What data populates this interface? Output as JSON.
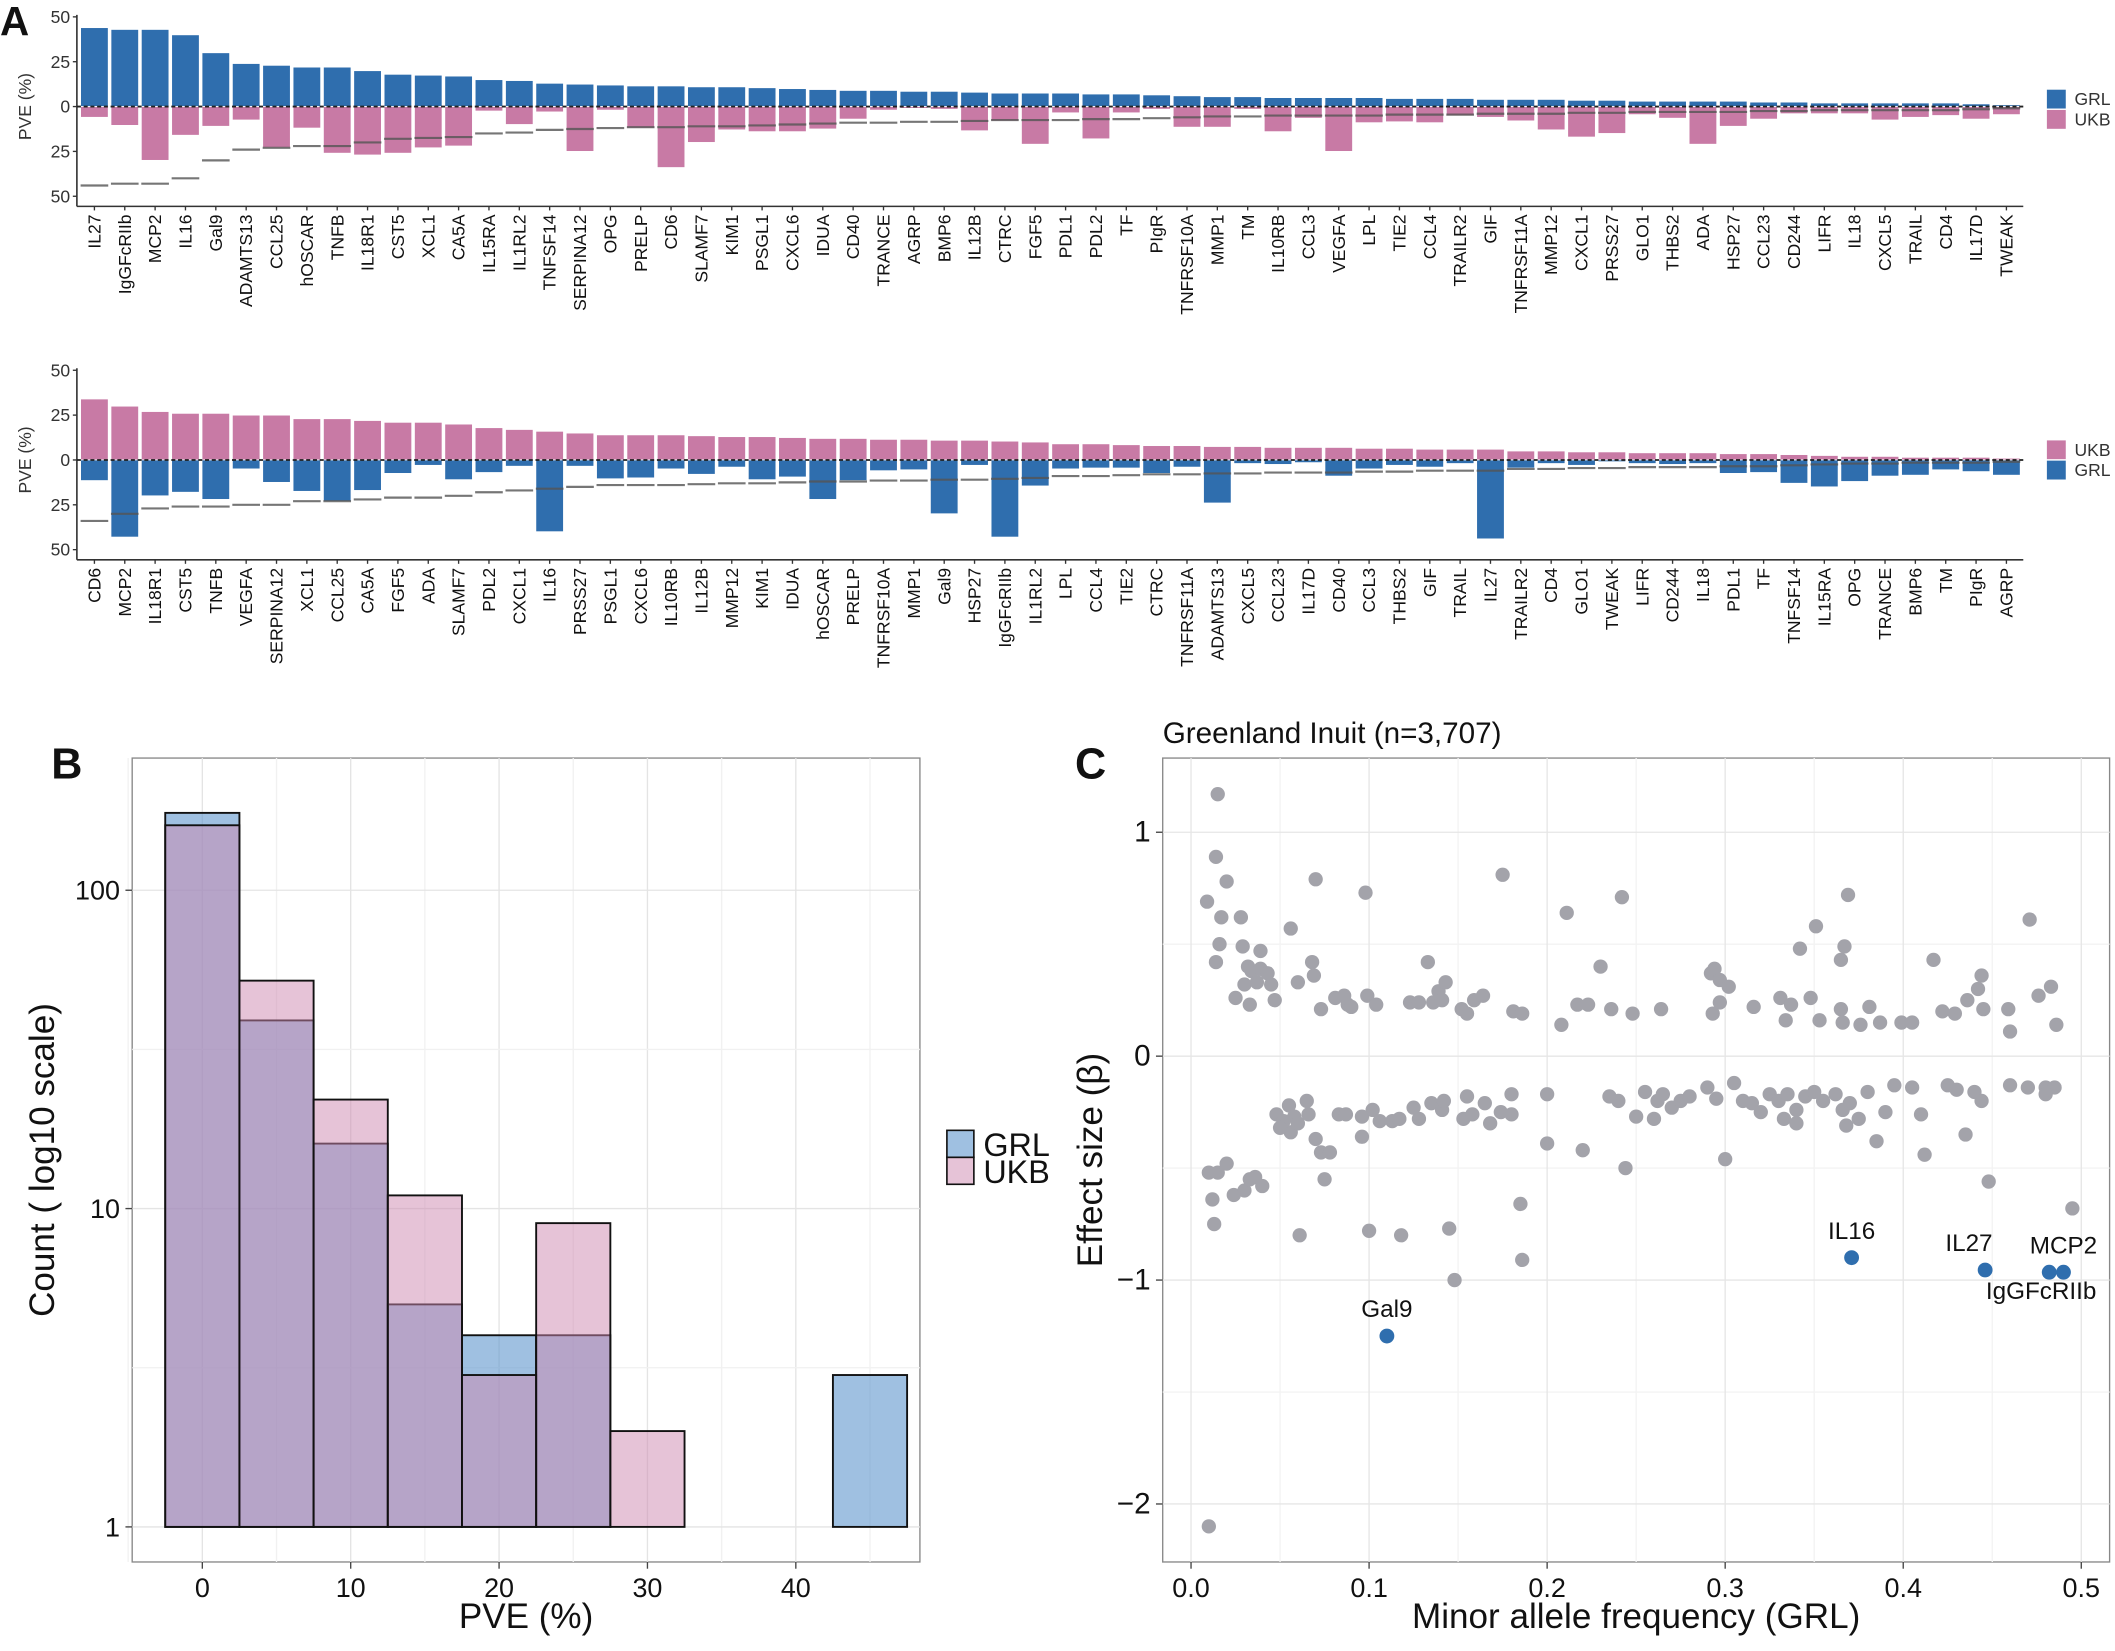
{
  "panel_labels": {
    "a": "A",
    "b": "B",
    "c": "C"
  },
  "colors": {
    "grl": "#2f6eae",
    "ukb": "#c87aa5",
    "gray_point": "#a3a3aa",
    "highlight": "#2f6eae"
  },
  "chart_data": [
    {
      "type": "bar",
      "panel": "A-top",
      "ylabel": "PVE (%)",
      "yticks": [
        "50",
        "25",
        "0",
        "25",
        "50"
      ],
      "ylim": [
        -50,
        50
      ],
      "legend": [
        "GRL",
        "UKB"
      ],
      "legend_placement": "right",
      "categories": [
        "IL27",
        "IgGFcRIIb",
        "MCP2",
        "IL16",
        "Gal9",
        "ADAMTS13",
        "CCL25",
        "hOSCAR",
        "TNFB",
        "IL18R1",
        "CST5",
        "XCL1",
        "CA5A",
        "IL15RA",
        "IL1RL2",
        "TNFSF14",
        "SERPINA12",
        "OPG",
        "PRELP",
        "CD6",
        "SLAMF7",
        "KIM1",
        "PSGL1",
        "CXCL6",
        "IDUA",
        "CD40",
        "TRANCE",
        "AGRP",
        "BMP6",
        "IL12B",
        "CTRC",
        "FGF5",
        "PDL1",
        "PDL2",
        "TF",
        "PIgR",
        "TNFRSF10A",
        "MMP1",
        "TM",
        "IL10RB",
        "CCL3",
        "VEGFA",
        "LPL",
        "TIE2",
        "CCL4",
        "TRAILR2",
        "GIF",
        "TNFRSF11A",
        "MMP12",
        "CXCL1",
        "PRSS27",
        "GLO1",
        "THBS2",
        "ADA",
        "HSP27",
        "CCL23",
        "CD244",
        "LIFR",
        "IL18",
        "CXCL5",
        "TRAIL",
        "CD4",
        "IL17D",
        "TWEAK"
      ]
    },
    {
      "type": "bar",
      "panel": "A-bottom",
      "ylabel": "PVE (%)",
      "yticks": [
        "50",
        "25",
        "0",
        "25",
        "50"
      ],
      "ylim": [
        -50,
        50
      ],
      "legend": [
        "UKB",
        "GRL"
      ],
      "legend_placement": "right",
      "categories": [
        "CD6",
        "MCP2",
        "IL18R1",
        "CST5",
        "TNFB",
        "VEGFA",
        "SERPINA12",
        "XCL1",
        "CCL25",
        "CA5A",
        "FGF5",
        "ADA",
        "SLAMF7",
        "PDL2",
        "CXCL1",
        "IL16",
        "PRSS27",
        "PSGL1",
        "CXCL6",
        "IL10RB",
        "IL12B",
        "MMP12",
        "KIM1",
        "IDUA",
        "hOSCAR",
        "PRELP",
        "TNFRSF10A",
        "MMP1",
        "Gal9",
        "HSP27",
        "IgGFcRIIb",
        "IL1RL2",
        "LPL",
        "CCL4",
        "TIE2",
        "CTRC",
        "TNFRSF11A",
        "ADAMTS13",
        "CXCL5",
        "CCL23",
        "IL17D",
        "CD40",
        "CCL3",
        "THBS2",
        "GIF",
        "TRAIL",
        "IL27",
        "TRAILR2",
        "CD4",
        "GLO1",
        "TWEAK",
        "LIFR",
        "CD244",
        "IL18",
        "PDL1",
        "TF",
        "TNFSF14",
        "IL15RA",
        "OPG",
        "TRANCE",
        "BMP6",
        "TM",
        "PIgR",
        "AGRP"
      ]
    },
    {
      "type": "values",
      "panel": "A-values",
      "grl": {
        "IL27": 44,
        "IgGFcRIIb": 43,
        "MCP2": 43,
        "IL16": 40,
        "Gal9": 30,
        "ADAMTS13": 24,
        "CCL25": 23,
        "hOSCAR": 22,
        "TNFB": 22,
        "IL18R1": 20,
        "CST5": 18,
        "XCL1": 17.5,
        "CA5A": 17,
        "IL15RA": 15,
        "IL1RL2": 14.5,
        "TNFSF14": 13,
        "SERPINA12": 12.5,
        "OPG": 12,
        "PRELP": 11.5,
        "CD6": 11.5,
        "SLAMF7": 11,
        "KIM1": 11,
        "PSGL1": 10.5,
        "CXCL6": 10,
        "IDUA": 9.5,
        "CD40": 9,
        "TRANCE": 9,
        "AGRP": 8.5,
        "BMP6": 8.5,
        "IL12B": 8,
        "CTRC": 7.5,
        "FGF5": 7.5,
        "PDL1": 7.5,
        "PDL2": 7,
        "TF": 7,
        "PIgR": 6.5,
        "TNFRSF10A": 6,
        "MMP1": 5.5,
        "TM": 5.5,
        "IL10RB": 5,
        "CCL3": 5,
        "VEGFA": 5,
        "LPL": 5,
        "TIE2": 4.5,
        "CCL4": 4.5,
        "TRAILR2": 4.5,
        "GIF": 4,
        "TNFRSF11A": 4,
        "MMP12": 4,
        "CXCL1": 3.5,
        "PRSS27": 3.5,
        "GLO1": 3,
        "THBS2": 3,
        "ADA": 3,
        "HSP27": 3,
        "CCL23": 2.5,
        "CD244": 2.5,
        "LIFR": 2,
        "IL18": 2,
        "CXCL5": 2,
        "TRAIL": 2,
        "CD4": 2,
        "IL17D": 1.5,
        "TWEAK": 1
      },
      "ukb": {
        "CD6": 34,
        "MCP2": 30,
        "IL18R1": 27,
        "CST5": 26,
        "TNFB": 26,
        "VEGFA": 25,
        "SERPINA12": 25,
        "XCL1": 23,
        "CCL25": 23,
        "CA5A": 22,
        "FGF5": 21,
        "ADA": 21,
        "SLAMF7": 20,
        "PDL2": 18,
        "CXCL1": 17,
        "IL16": 16,
        "PRSS27": 15,
        "PSGL1": 14,
        "CXCL6": 14,
        "IL10RB": 14,
        "IL12B": 13.5,
        "MMP12": 13,
        "KIM1": 13,
        "IDUA": 12.5,
        "hOSCAR": 12,
        "PRELP": 12,
        "TNFRSF10A": 11.5,
        "MMP1": 11.5,
        "Gal9": 11,
        "HSP27": 11,
        "IgGFcRIIb": 10.5,
        "IL1RL2": 10,
        "LPL": 9,
        "CCL4": 9,
        "TIE2": 8.5,
        "CTRC": 8,
        "TNFRSF11A": 8,
        "ADAMTS13": 7.5,
        "CXCL5": 7.5,
        "CCL23": 7,
        "IL17D": 7,
        "CD40": 7,
        "CCL3": 6.5,
        "THBS2": 6.5,
        "GIF": 6,
        "TRAIL": 6,
        "IL27": 6,
        "TRAILR2": 5,
        "CD4": 5,
        "GLO1": 4.5,
        "TWEAK": 4.5,
        "LIFR": 4,
        "CD244": 4,
        "IL18": 4,
        "PDL1": 3.5,
        "TF": 3.5,
        "TNFSF14": 3,
        "IL15RA": 2.5,
        "OPG": 2,
        "TRANCE": 2,
        "BMP6": 1.5,
        "TM": 1.5,
        "PIgR": 1.5,
        "AGRP": 1
      }
    },
    {
      "type": "bar",
      "panel": "B",
      "xlabel": "PVE (%)",
      "ylabel": "Count ( log10 scale)",
      "yscale": "log",
      "xlim": [
        -5,
        47.5
      ],
      "ylim": [
        0.8,
        200
      ],
      "xticks": [
        "0",
        "10",
        "20",
        "30",
        "40"
      ],
      "yticks": [
        "1",
        "10",
        "100"
      ],
      "bin_centers": [
        0,
        5,
        10,
        15,
        20,
        25,
        30,
        35,
        40,
        45
      ],
      "bin_width": 5,
      "legend_placement": "right",
      "series": [
        {
          "name": "GRL",
          "values": [
            175,
            39,
            16,
            5,
            4,
            4,
            1,
            1,
            1,
            3
          ]
        },
        {
          "name": "UKB",
          "values": [
            160,
            52,
            22,
            11,
            3,
            9,
            2,
            1,
            1,
            1
          ]
        }
      ],
      "grid": true
    },
    {
      "type": "scatter",
      "panel": "C",
      "title": "Greenland Inuit (n=3,707)",
      "xlabel": "Minor allele frequency (GRL)",
      "ylabel": "Effect size (β)",
      "xlim": [
        -0.015,
        0.515
      ],
      "ylim": [
        -2.25,
        1.35
      ],
      "xticks": [
        "0.0",
        "0.1",
        "0.2",
        "0.3",
        "0.4",
        "0.5"
      ],
      "yticks": [
        "1",
        "0",
        "−1",
        "−2"
      ],
      "grid": true,
      "highlighted": [
        {
          "label": "Gal9",
          "x": 0.11,
          "y": -1.25
        },
        {
          "label": "IL16",
          "x": 0.371,
          "y": -0.9
        },
        {
          "label": "IL27",
          "x": 0.446,
          "y": -0.955
        },
        {
          "label": "IgGFcRIIb",
          "x": 0.482,
          "y": -0.965
        },
        {
          "label": "MCP2",
          "x": 0.49,
          "y": -0.965
        }
      ],
      "points": [
        [
          0.009,
          0.69
        ],
        [
          0.015,
          1.17
        ],
        [
          0.014,
          0.89
        ],
        [
          0.02,
          0.78
        ],
        [
          0.017,
          0.62
        ],
        [
          0.016,
          0.5
        ],
        [
          0.014,
          0.42
        ],
        [
          0.028,
          0.62
        ],
        [
          0.029,
          0.49
        ],
        [
          0.032,
          0.4
        ],
        [
          0.034,
          0.38
        ],
        [
          0.037,
          0.33
        ],
        [
          0.039,
          0.47
        ],
        [
          0.039,
          0.39
        ],
        [
          0.043,
          0.37
        ],
        [
          0.03,
          0.32
        ],
        [
          0.025,
          0.26
        ],
        [
          0.033,
          0.23
        ],
        [
          0.047,
          0.25
        ],
        [
          0.045,
          0.32
        ],
        [
          0.056,
          0.57
        ],
        [
          0.06,
          0.33
        ],
        [
          0.07,
          0.79
        ],
        [
          0.068,
          0.42
        ],
        [
          0.069,
          0.36
        ],
        [
          0.073,
          0.21
        ],
        [
          0.081,
          0.26
        ],
        [
          0.086,
          0.27
        ],
        [
          0.088,
          0.23
        ],
        [
          0.09,
          0.22
        ],
        [
          0.098,
          0.73
        ],
        [
          0.099,
          0.27
        ],
        [
          0.104,
          0.23
        ],
        [
          0.123,
          0.24
        ],
        [
          0.128,
          0.24
        ],
        [
          0.133,
          0.42
        ],
        [
          0.136,
          0.24
        ],
        [
          0.139,
          0.29
        ],
        [
          0.141,
          0.25
        ],
        [
          0.143,
          0.33
        ],
        [
          0.152,
          0.21
        ],
        [
          0.155,
          0.19
        ],
        [
          0.159,
          0.25
        ],
        [
          0.164,
          0.27
        ],
        [
          0.175,
          0.81
        ],
        [
          0.181,
          0.2
        ],
        [
          0.186,
          0.19
        ],
        [
          0.208,
          0.14
        ],
        [
          0.211,
          0.64
        ],
        [
          0.217,
          0.23
        ],
        [
          0.223,
          0.23
        ],
        [
          0.23,
          0.4
        ],
        [
          0.236,
          0.21
        ],
        [
          0.242,
          0.71
        ],
        [
          0.248,
          0.19
        ],
        [
          0.264,
          0.21
        ],
        [
          0.292,
          0.37
        ],
        [
          0.294,
          0.39
        ],
        [
          0.297,
          0.34
        ],
        [
          0.297,
          0.24
        ],
        [
          0.293,
          0.19
        ],
        [
          0.302,
          0.31
        ],
        [
          0.316,
          0.22
        ],
        [
          0.331,
          0.26
        ],
        [
          0.334,
          0.16
        ],
        [
          0.337,
          0.23
        ],
        [
          0.342,
          0.48
        ],
        [
          0.348,
          0.26
        ],
        [
          0.351,
          0.58
        ],
        [
          0.353,
          0.16
        ],
        [
          0.367,
          0.49
        ],
        [
          0.369,
          0.72
        ],
        [
          0.365,
          0.43
        ],
        [
          0.365,
          0.21
        ],
        [
          0.366,
          0.15
        ],
        [
          0.376,
          0.14
        ],
        [
          0.381,
          0.22
        ],
        [
          0.387,
          0.15
        ],
        [
          0.399,
          0.15
        ],
        [
          0.405,
          0.15
        ],
        [
          0.417,
          0.43
        ],
        [
          0.422,
          0.2
        ],
        [
          0.429,
          0.19
        ],
        [
          0.436,
          0.25
        ],
        [
          0.442,
          0.3
        ],
        [
          0.444,
          0.36
        ],
        [
          0.445,
          0.21
        ],
        [
          0.459,
          0.21
        ],
        [
          0.46,
          0.11
        ],
        [
          0.471,
          0.61
        ],
        [
          0.476,
          0.27
        ],
        [
          0.483,
          0.31
        ],
        [
          0.486,
          0.14
        ],
        [
          0.01,
          -0.52
        ],
        [
          0.012,
          -0.64
        ],
        [
          0.013,
          -0.75
        ],
        [
          0.015,
          -0.52
        ],
        [
          0.02,
          -0.48
        ],
        [
          0.024,
          -0.62
        ],
        [
          0.03,
          -0.6
        ],
        [
          0.033,
          -0.55
        ],
        [
          0.036,
          -0.54
        ],
        [
          0.04,
          -0.58
        ],
        [
          0.048,
          -0.26
        ],
        [
          0.052,
          -0.29
        ],
        [
          0.055,
          -0.22
        ],
        [
          0.056,
          -0.34
        ],
        [
          0.058,
          -0.27
        ],
        [
          0.06,
          -0.3
        ],
        [
          0.061,
          -0.8
        ],
        [
          0.066,
          -0.26
        ],
        [
          0.07,
          -0.37
        ],
        [
          0.073,
          -0.43
        ],
        [
          0.075,
          -0.55
        ],
        [
          0.078,
          -0.43
        ],
        [
          0.083,
          -0.26
        ],
        [
          0.087,
          -0.26
        ],
        [
          0.096,
          -0.27
        ],
        [
          0.096,
          -0.36
        ],
        [
          0.1,
          -0.78
        ],
        [
          0.102,
          -0.24
        ],
        [
          0.106,
          -0.29
        ],
        [
          0.113,
          -0.29
        ],
        [
          0.117,
          -0.28
        ],
        [
          0.118,
          -0.8
        ],
        [
          0.125,
          -0.23
        ],
        [
          0.128,
          -0.28
        ],
        [
          0.135,
          -0.21
        ],
        [
          0.141,
          -0.24
        ],
        [
          0.145,
          -0.77
        ],
        [
          0.148,
          -1.0
        ],
        [
          0.142,
          -0.2
        ],
        [
          0.153,
          -0.28
        ],
        [
          0.158,
          -0.26
        ],
        [
          0.165,
          -0.21
        ],
        [
          0.168,
          -0.3
        ],
        [
          0.174,
          -0.25
        ],
        [
          0.18,
          -0.26
        ],
        [
          0.185,
          -0.66
        ],
        [
          0.186,
          -0.91
        ],
        [
          0.2,
          -0.17
        ],
        [
          0.2,
          -0.39
        ],
        [
          0.22,
          -0.42
        ],
        [
          0.235,
          -0.18
        ],
        [
          0.24,
          -0.2
        ],
        [
          0.244,
          -0.5
        ],
        [
          0.25,
          -0.27
        ],
        [
          0.255,
          -0.16
        ],
        [
          0.26,
          -0.28
        ],
        [
          0.262,
          -0.2
        ],
        [
          0.265,
          -0.17
        ],
        [
          0.27,
          -0.23
        ],
        [
          0.275,
          -0.2
        ],
        [
          0.28,
          -0.18
        ],
        [
          0.29,
          -0.14
        ],
        [
          0.295,
          -0.19
        ],
        [
          0.3,
          -0.46
        ],
        [
          0.305,
          -0.12
        ],
        [
          0.31,
          -0.2
        ],
        [
          0.315,
          -0.21
        ],
        [
          0.32,
          -0.25
        ],
        [
          0.325,
          -0.17
        ],
        [
          0.33,
          -0.2
        ],
        [
          0.333,
          -0.28
        ],
        [
          0.335,
          -0.17
        ],
        [
          0.34,
          -0.24
        ],
        [
          0.345,
          -0.18
        ],
        [
          0.35,
          -0.16
        ],
        [
          0.355,
          -0.2
        ],
        [
          0.362,
          -0.17
        ],
        [
          0.366,
          -0.24
        ],
        [
          0.368,
          -0.31
        ],
        [
          0.37,
          -0.21
        ],
        [
          0.375,
          -0.28
        ],
        [
          0.38,
          -0.16
        ],
        [
          0.385,
          -0.38
        ],
        [
          0.39,
          -0.25
        ],
        [
          0.395,
          -0.13
        ],
        [
          0.405,
          -0.14
        ],
        [
          0.41,
          -0.26
        ],
        [
          0.412,
          -0.44
        ],
        [
          0.425,
          -0.13
        ],
        [
          0.43,
          -0.15
        ],
        [
          0.435,
          -0.35
        ],
        [
          0.44,
          -0.16
        ],
        [
          0.444,
          -0.2
        ],
        [
          0.448,
          -0.56
        ],
        [
          0.46,
          -0.13
        ],
        [
          0.47,
          -0.14
        ],
        [
          0.48,
          -0.14
        ],
        [
          0.485,
          -0.14
        ],
        [
          0.48,
          -0.17
        ],
        [
          0.495,
          -0.68
        ],
        [
          0.01,
          -2.1
        ],
        [
          0.05,
          -0.32
        ],
        [
          0.065,
          -0.2
        ],
        [
          0.155,
          -0.18
        ],
        [
          0.34,
          -0.3
        ],
        [
          0.18,
          -0.17
        ]
      ]
    }
  ]
}
